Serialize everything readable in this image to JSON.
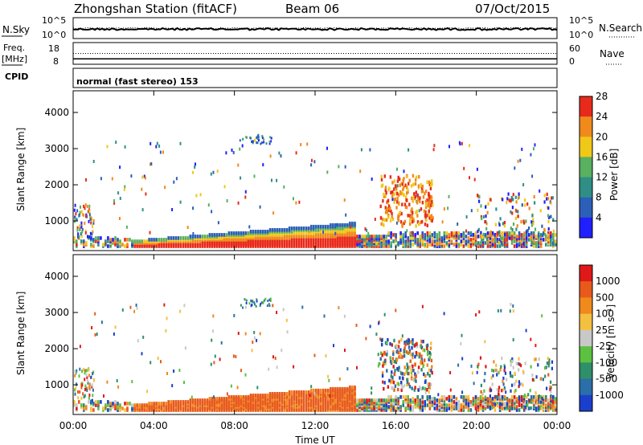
{
  "header": {
    "title": "Zhongshan Station (fitACF)",
    "beam": "Beam 06",
    "date": "07/Oct/2015"
  },
  "chart_data": [
    {
      "type": "line",
      "name": "noise-panel",
      "left_label": "N.Sky",
      "left_ticks": [
        "10^5",
        "10^0"
      ],
      "right_label": "N.Search",
      "right_ticks": [
        "10^5",
        "10^0"
      ],
      "series": [
        {
          "name": "N.Sky",
          "style": "solid",
          "level": 0.45
        },
        {
          "name": "N.Search",
          "style": "dotted",
          "level": 0.5
        }
      ]
    },
    {
      "type": "line",
      "name": "freq-panel",
      "left_label_top": "Freq.",
      "left_label_unit": "[MHz]",
      "left_ticks": [
        "18",
        "8"
      ],
      "ylim": [
        8,
        18
      ],
      "right_label": "Nave",
      "right_ticks": [
        "60",
        "0"
      ],
      "series": [
        {
          "name": "Freq",
          "style": "solid",
          "value": 10.5
        },
        {
          "name": "Nave",
          "style": "dotted",
          "value": 30
        }
      ]
    },
    {
      "type": "label",
      "name": "cpid-panel",
      "label": "CPID",
      "mode": "normal (fast stereo) 153"
    },
    {
      "type": "heatmap",
      "name": "power",
      "ylabel": "Slant Range [km]",
      "yticks": [
        "1000",
        "2000",
        "3000",
        "4000"
      ],
      "ylim": [
        180,
        4600
      ],
      "colorbar_label": "Power [dB]",
      "colorbar_ticks": [
        "4",
        "8",
        "12",
        "16",
        "20",
        "24",
        "28"
      ],
      "colors": [
        "#1f1fff",
        "#2c5fb8",
        "#2f8f86",
        "#58b060",
        "#f0c818",
        "#f08a1c",
        "#e82a1c"
      ]
    },
    {
      "type": "heatmap",
      "name": "velocity",
      "ylabel": "Slant Range [km]",
      "yticks": [
        "1000",
        "2000",
        "3000",
        "4000"
      ],
      "ylim": [
        180,
        4600
      ],
      "colorbar_label": "Velocity [m s⁻¹]",
      "colorbar_ticks": [
        "1000",
        "500",
        "100",
        "25",
        "-25",
        "-100",
        "-500",
        "-1000"
      ],
      "colors": [
        "#1a3fcc",
        "#2a6fa8",
        "#2f8f6a",
        "#5cc040",
        "#c8c8c8",
        "#f4c040",
        "#f08a1c",
        "#e85a1c",
        "#e01818"
      ],
      "xlabel": "Time UT",
      "xticks": [
        "00:00",
        "04:00",
        "08:00",
        "12:00",
        "16:00",
        "20:00",
        "00:00"
      ],
      "xlim_hours": [
        0,
        24
      ]
    }
  ]
}
